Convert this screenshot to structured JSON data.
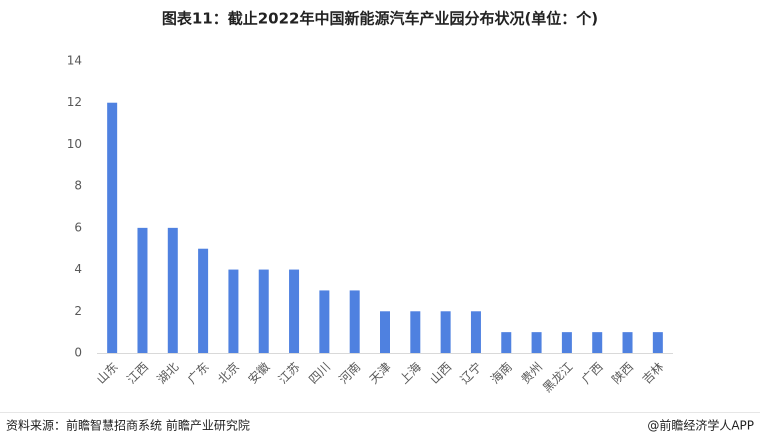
{
  "chart_data": {
    "type": "bar",
    "title": "图表11：截止2022年中国新能源汽车产业园分布状况(单位：个)",
    "categories": [
      "山东",
      "江西",
      "湖北",
      "广东",
      "北京",
      "安徽",
      "江苏",
      "四川",
      "河南",
      "天津",
      "上海",
      "山西",
      "辽宁",
      "海南",
      "贵州",
      "黑龙江",
      "广西",
      "陕西",
      "吉林"
    ],
    "values": [
      12,
      6,
      6,
      5,
      4,
      4,
      4,
      3,
      3,
      2,
      2,
      2,
      2,
      1,
      1,
      1,
      1,
      1,
      1
    ],
    "color": "#4f81e0",
    "ylim": [
      0,
      14
    ],
    "yticks": [
      0,
      2,
      4,
      6,
      8,
      10,
      12,
      14
    ],
    "grid": false
  },
  "source": "资料来源：前瞻智慧招商系统 前瞻产业研究院",
  "brand": "@前瞻经济学人APP"
}
